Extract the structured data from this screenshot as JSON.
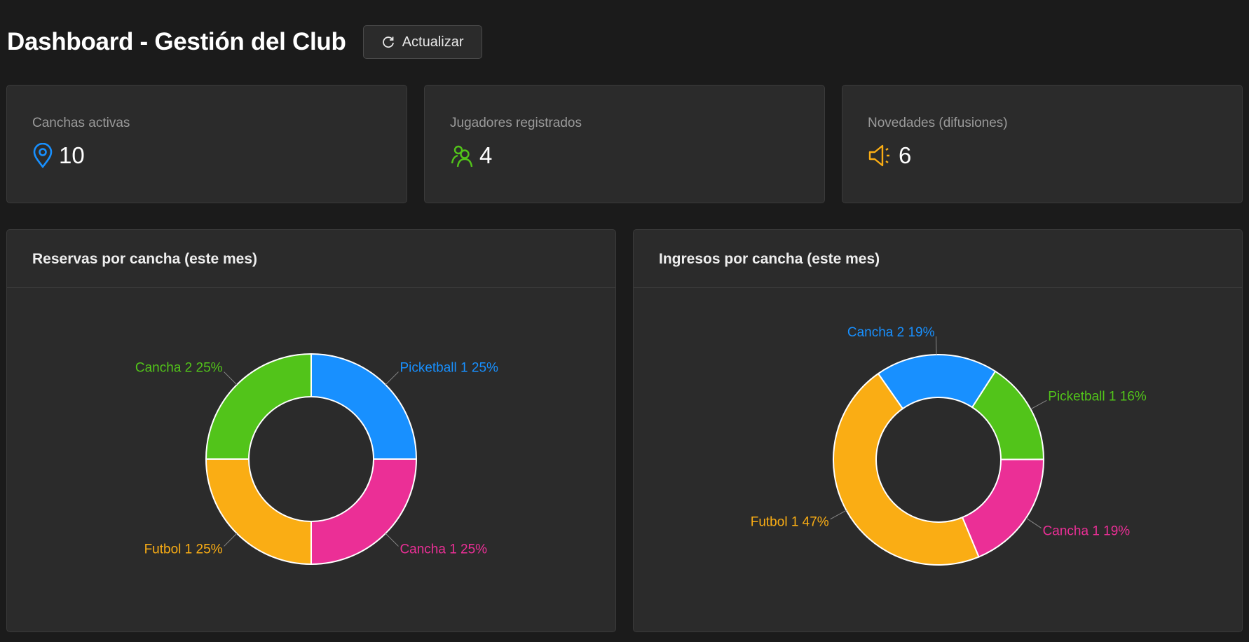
{
  "header": {
    "title": "Dashboard - Gestión del Club",
    "refresh_label": "Actualizar",
    "refresh_icon": "reload-icon"
  },
  "stats": [
    {
      "label": "Canchas activas",
      "value": "10",
      "icon": "map-pin-icon",
      "color": "#1890ff"
    },
    {
      "label": "Jugadores registrados",
      "value": "4",
      "icon": "users-icon",
      "color": "#52c41a"
    },
    {
      "label": "Novedades (difusiones)",
      "value": "6",
      "icon": "megaphone-icon",
      "color": "#faad14"
    }
  ],
  "chart_data": [
    {
      "type": "pie",
      "donut": true,
      "title": "Reservas por cancha (este mes)",
      "slices": [
        {
          "label": "Picketball 1",
          "percent": 25,
          "color": "#1890ff"
        },
        {
          "label": "Cancha 1",
          "percent": 25,
          "color": "#eb2f96"
        },
        {
          "label": "Futbol 1",
          "percent": 25,
          "color": "#faad14"
        },
        {
          "label": "Cancha 2",
          "percent": 25,
          "color": "#52c41a"
        }
      ]
    },
    {
      "type": "pie",
      "donut": true,
      "title": "Ingresos por cancha (este mes)",
      "slices": [
        {
          "label": "Cancha 2",
          "percent": 19,
          "color": "#1890ff"
        },
        {
          "label": "Picketball 1",
          "percent": 16,
          "color": "#52c41a"
        },
        {
          "label": "Cancha 1",
          "percent": 19,
          "color": "#eb2f96"
        },
        {
          "label": "Futbol 1",
          "percent": 47,
          "color": "#faad14"
        }
      ]
    }
  ]
}
